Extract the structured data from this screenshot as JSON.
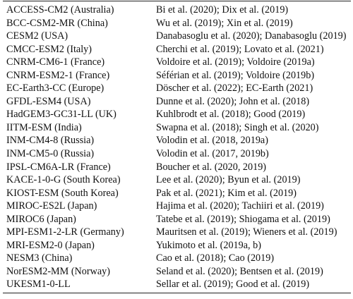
{
  "table": {
    "rows": [
      {
        "model": "ACCESS-CM2 (Australia)",
        "refs": "Bi et al. (2020); Dix et al. (2019)"
      },
      {
        "model": "BCC-CSM2-MR (China)",
        "refs": "Wu et al. (2019); Xin et al. (2019)"
      },
      {
        "model": "CESM2 (USA)",
        "refs": "Danabasoglu et al. (2020); Danabasoglu (2019)"
      },
      {
        "model": "CMCC-ESM2 (Italy)",
        "refs": "Cherchi et al. (2019); Lovato et al. (2021)"
      },
      {
        "model": "CNRM-CM6-1 (France)",
        "refs": "Voldoire et al. (2019); Voldoire (2019a)"
      },
      {
        "model": "CNRM-ESM2-1 (France)",
        "refs": "Séférian et al. (2019); Voldoire (2019b)"
      },
      {
        "model": "EC-Earth3-CC (Europe)",
        "refs": "Döscher et al. (2022); EC-Earth (2021)"
      },
      {
        "model": "GFDL-ESM4 (USA)",
        "refs": "Dunne et al. (2020); John et al. (2018)"
      },
      {
        "model": "HadGEM3-GC31-LL (UK)",
        "refs": "Kuhlbrodt et al. (2018); Good (2019)"
      },
      {
        "model": "IITM-ESM (India)",
        "refs": "Swapna et al. (2018); Singh et al. (2020)"
      },
      {
        "model": "INM-CM4-8 (Russia)",
        "refs": "Volodin et al. (2018, 2019a)"
      },
      {
        "model": "INM-CM5-0 (Russia)",
        "refs": "Volodin et al. (2017, 2019b)"
      },
      {
        "model": "IPSL-CM6A-LR (France)",
        "refs": "Boucher et al. (2020, 2019)"
      },
      {
        "model": "KACE-1-0-G (South Korea)",
        "refs": "Lee et al. (2020); Byun et al. (2019)"
      },
      {
        "model": "KIOST-ESM (South Korea)",
        "refs": "Pak et al. (2021); Kim et al. (2019)"
      },
      {
        "model": "MIROC-ES2L (Japan)",
        "refs": "Hajima et al. (2020); Tachiiri et al. (2019)"
      },
      {
        "model": "MIROC6 (Japan)",
        "refs": "Tatebe et al. (2019); Shiogama et al. (2019)"
      },
      {
        "model": "MPI-ESM1-2-LR (Germany)",
        "refs": "Mauritsen et al. (2019); Wieners et al. (2019)"
      },
      {
        "model": "MRI-ESM2-0 (Japan)",
        "refs": "Yukimoto et al. (2019a, b)"
      },
      {
        "model": "NESM3 (China)",
        "refs": "Cao et al. (2018); Cao (2019)"
      },
      {
        "model": "NorESM2-MM (Norway)",
        "refs": "Seland et al. (2020); Bentsen et al. (2019)"
      },
      {
        "model": "UKESM1-0-LL",
        "refs": "Sellar et al. (2019); Good et al. (2019)"
      }
    ]
  }
}
